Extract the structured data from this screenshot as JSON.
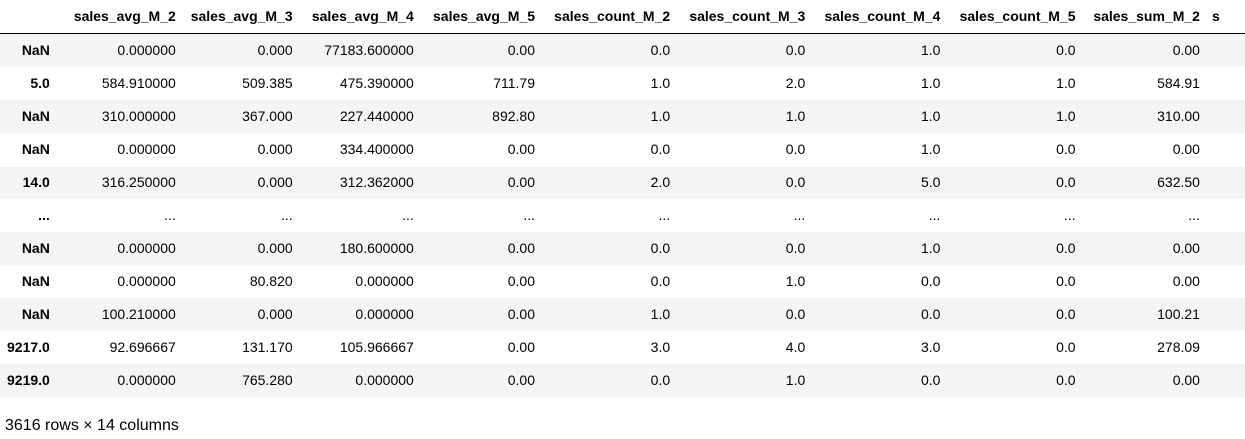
{
  "table": {
    "columns": [
      "",
      "sales_avg_M_2",
      "sales_avg_M_3",
      "sales_avg_M_4",
      "sales_avg_M_5",
      "sales_count_M_2",
      "sales_count_M_3",
      "sales_count_M_4",
      "sales_count_M_5",
      "sales_sum_M_2",
      "s"
    ],
    "rows": [
      [
        "NaN",
        "0.000000",
        "0.000",
        "77183.600000",
        "0.00",
        "0.0",
        "0.0",
        "1.0",
        "0.0",
        "0.00",
        ""
      ],
      [
        "5.0",
        "584.910000",
        "509.385",
        "475.390000",
        "711.79",
        "1.0",
        "2.0",
        "1.0",
        "1.0",
        "584.91",
        ""
      ],
      [
        "NaN",
        "310.000000",
        "367.000",
        "227.440000",
        "892.80",
        "1.0",
        "1.0",
        "1.0",
        "1.0",
        "310.00",
        ""
      ],
      [
        "NaN",
        "0.000000",
        "0.000",
        "334.400000",
        "0.00",
        "0.0",
        "0.0",
        "1.0",
        "0.0",
        "0.00",
        ""
      ],
      [
        "14.0",
        "316.250000",
        "0.000",
        "312.362000",
        "0.00",
        "2.0",
        "0.0",
        "5.0",
        "0.0",
        "632.50",
        ""
      ],
      [
        "...",
        "...",
        "...",
        "...",
        "...",
        "...",
        "...",
        "...",
        "...",
        "...",
        ""
      ],
      [
        "NaN",
        "0.000000",
        "0.000",
        "180.600000",
        "0.00",
        "0.0",
        "0.0",
        "1.0",
        "0.0",
        "0.00",
        ""
      ],
      [
        "NaN",
        "0.000000",
        "80.820",
        "0.000000",
        "0.00",
        "0.0",
        "1.0",
        "0.0",
        "0.0",
        "0.00",
        ""
      ],
      [
        "NaN",
        "100.210000",
        "0.000",
        "0.000000",
        "0.00",
        "1.0",
        "0.0",
        "0.0",
        "0.0",
        "100.21",
        ""
      ],
      [
        "9217.0",
        "92.696667",
        "131.170",
        "105.966667",
        "0.00",
        "3.0",
        "4.0",
        "3.0",
        "0.0",
        "278.09",
        ""
      ],
      [
        "9219.0",
        "0.000000",
        "765.280",
        "0.000000",
        "0.00",
        "0.0",
        "1.0",
        "0.0",
        "0.0",
        "0.00",
        ""
      ]
    ]
  },
  "footer": {
    "summary": "3616 rows × 14 columns"
  },
  "colors": {
    "stripe": "#f5f5f5",
    "header_rule": "#000000",
    "text": "#000000"
  }
}
